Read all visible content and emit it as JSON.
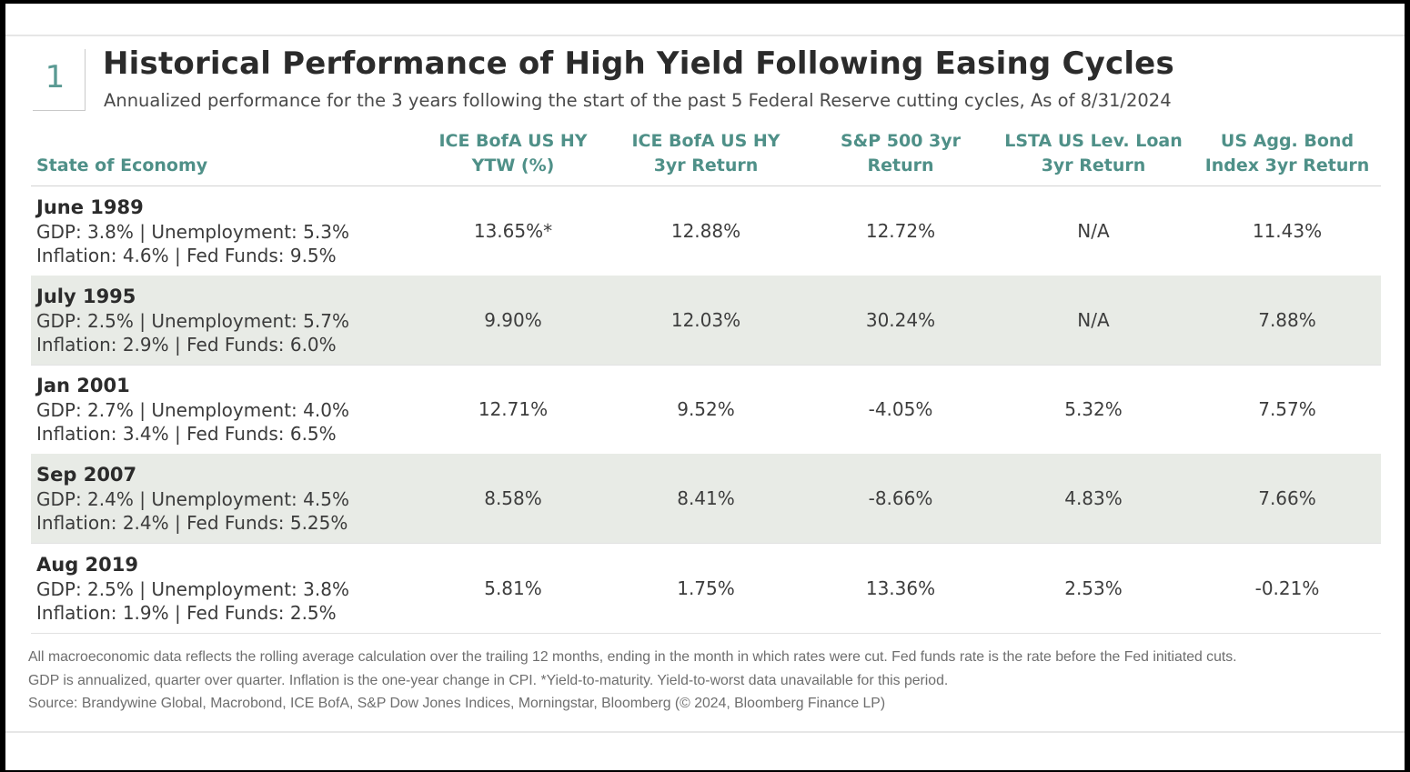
{
  "figure_number": "1",
  "title": "Historical Performance of High Yield Following Easing Cycles",
  "subtitle": "Annualized performance for the 3 years following the start of the past 5 Federal Reserve cutting cycles, As of 8/31/2024",
  "colors": {
    "header_text": "#4f9088",
    "figure_number": "#5a9a93",
    "shaded_row": "#e8ebe6",
    "body_text": "#3d3d3d"
  },
  "chart_data": {
    "type": "table",
    "columns": [
      "State of Economy",
      "ICE BofA US HY YTW (%)",
      "ICE BofA US HY 3yr Return",
      "S&P 500 3yr Return",
      "LSTA US Lev. Loan 3yr Return",
      "US Agg. Bond Index 3yr Return"
    ],
    "header_lines": [
      [
        "State of Economy"
      ],
      [
        "ICE BofA US HY",
        "YTW (%)"
      ],
      [
        "ICE BofA US HY",
        "3yr Return"
      ],
      [
        "S&P 500 3yr",
        "Return"
      ],
      [
        "LSTA US Lev. Loan",
        "3yr Return"
      ],
      [
        "US Agg. Bond",
        "Index 3yr Return"
      ]
    ],
    "rows": [
      {
        "period": "June 1989",
        "line1": "GDP: 3.8% | Unemployment: 5.3%",
        "line2": "Inflation: 4.6% | Fed Funds: 9.5%",
        "values": [
          "13.65%*",
          "12.88%",
          "12.72%",
          "N/A",
          "11.43%"
        ]
      },
      {
        "period": "July 1995",
        "line1": "GDP: 2.5% | Unemployment: 5.7%",
        "line2": "Inflation: 2.9% | Fed Funds: 6.0%",
        "values": [
          "9.90%",
          "12.03%",
          "30.24%",
          "N/A",
          "7.88%"
        ]
      },
      {
        "period": "Jan 2001",
        "line1": "GDP: 2.7% | Unemployment: 4.0%",
        "line2": "Inflation: 3.4% | Fed Funds: 6.5%",
        "values": [
          "12.71%",
          "9.52%",
          "-4.05%",
          "5.32%",
          "7.57%"
        ]
      },
      {
        "period": "Sep 2007",
        "line1": "GDP: 2.4% | Unemployment: 4.5%",
        "line2": "Inflation: 2.4% | Fed Funds: 5.25%",
        "values": [
          "8.58%",
          "8.41%",
          "-8.66%",
          "4.83%",
          "7.66%"
        ]
      },
      {
        "period": "Aug 2019",
        "line1": "GDP: 2.5% | Unemployment: 3.8%",
        "line2": "Inflation: 1.9% | Fed Funds: 2.5%",
        "values": [
          "5.81%",
          "1.75%",
          "13.36%",
          "2.53%",
          "-0.21%"
        ]
      }
    ]
  },
  "footnotes": [
    "All macroeconomic data reflects the rolling average calculation over the trailing 12 months, ending in the month in which rates were cut. Fed funds rate is the rate before the Fed initiated cuts.",
    "GDP is annualized, quarter over quarter. Inflation is the one-year change in CPI. *Yield-to-maturity. Yield-to-worst data unavailable for this period.",
    "Source: Brandywine Global, Macrobond, ICE BofA, S&P Dow Jones Indices, Morningstar, Bloomberg (© 2024, Bloomberg Finance LP)"
  ]
}
